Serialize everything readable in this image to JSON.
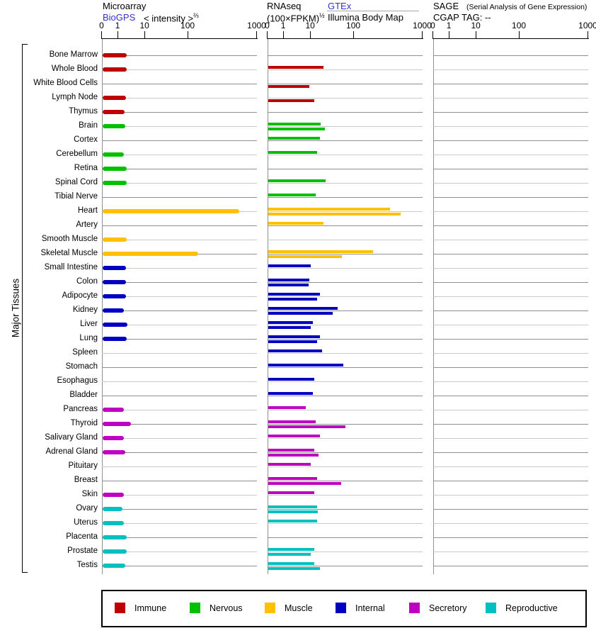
{
  "header": {
    "microarray": {
      "title": "Microarray",
      "link": "BioGPS",
      "intensity": "< intensity >",
      "exp": "⅔"
    },
    "rnaseq": {
      "title": "RNAseq",
      "unit": "(100×FPKM)",
      "exp": "½",
      "link": "GTEx",
      "link2": "Illumina Body Map"
    },
    "sage": {
      "title": "SAGE",
      "note": "(Serial Analysis of Gene Expression)",
      "tag": "CGAP TAG: --"
    }
  },
  "left_label": "Major Tissues",
  "axis_ticks": [
    {
      "label": "0",
      "v": 0
    },
    {
      "label": "1",
      "v": 1
    },
    {
      "label": "10",
      "v": 10
    },
    {
      "label": "100",
      "v": 100
    },
    {
      "label": "1000",
      "v": 1000
    }
  ],
  "colors": {
    "Immune": "#C00000",
    "Nervous": "#00C000",
    "Muscle": "#FFC000",
    "Internal": "#0000C0",
    "Secretory": "#C000C0",
    "Reproductive": "#00C0C0",
    "link": "#3333CC",
    "grid_dark": "#8F8F8F",
    "grid_light": "#C9C9C9"
  },
  "legend": [
    {
      "label": "Immune",
      "color": "#C00000"
    },
    {
      "label": "Nervous",
      "color": "#00C000"
    },
    {
      "label": "Muscle",
      "color": "#FFC000"
    },
    {
      "label": "Internal",
      "color": "#0000C0"
    },
    {
      "label": "Secretory",
      "color": "#C000C0"
    },
    {
      "label": "Reproductive",
      "color": "#00C0C0"
    }
  ],
  "chart_data": {
    "type": "bar",
    "orientation": "horizontal",
    "panels": [
      "Microarray (BioGPS, intensity^2/3)",
      "RNAseq GTEx ((100×FPKM)^1/2)",
      "RNAseq Illumina Body Map",
      "SAGE (no data, CGAP TAG: --)"
    ],
    "xlim": [
      0,
      1000
    ],
    "x_tick_labels": [
      "0",
      "1",
      "10",
      "100",
      "1000"
    ],
    "scale_note": "nonlinear axis: ticks 0,1,10,100,1000 at fractions 0,0.103,0.277,0.555,1.0 of axis width",
    "sage_values": "none",
    "tissues": [
      {
        "name": "Bone Marrow",
        "group": "Immune",
        "microarray": 2.0,
        "gtex": null,
        "illumina": null
      },
      {
        "name": "Whole Blood",
        "group": "Immune",
        "microarray": 2.1,
        "gtex": 20,
        "illumina": null
      },
      {
        "name": "White Blood Cells",
        "group": "Immune",
        "microarray": null,
        "gtex": null,
        "illumina": 9
      },
      {
        "name": "Lymph Node",
        "group": "Immune",
        "microarray": 1.9,
        "gtex": null,
        "illumina": 12
      },
      {
        "name": "Thymus",
        "group": "Immune",
        "microarray": 1.7,
        "gtex": null,
        "illumina": null
      },
      {
        "name": "Brain",
        "group": "Nervous",
        "microarray": 1.8,
        "gtex": 17,
        "illumina": 21
      },
      {
        "name": "Cortex",
        "group": "Nervous",
        "microarray": null,
        "gtex": 16,
        "illumina": null
      },
      {
        "name": "Cerebellum",
        "group": "Nervous",
        "microarray": 1.6,
        "gtex": 14,
        "illumina": null
      },
      {
        "name": "Retina",
        "group": "Nervous",
        "microarray": 2.1,
        "gtex": null,
        "illumina": null
      },
      {
        "name": "Spinal Cord",
        "group": "Nervous",
        "microarray": 2.0,
        "gtex": 22,
        "illumina": null
      },
      {
        "name": "Tibial Nerve",
        "group": "Nervous",
        "microarray": null,
        "gtex": 13,
        "illumina": null
      },
      {
        "name": "Heart",
        "group": "Muscle",
        "microarray": 550,
        "gtex": 330,
        "illumina": 470
      },
      {
        "name": "Artery",
        "group": "Muscle",
        "microarray": null,
        "gtex": 20,
        "illumina": null
      },
      {
        "name": "Smooth Muscle",
        "group": "Muscle",
        "microarray": 2.1,
        "gtex": null,
        "illumina": null
      },
      {
        "name": "Skeletal Muscle",
        "group": "Muscle",
        "microarray": 140,
        "gtex": 190,
        "illumina": 53
      },
      {
        "name": "Small Intestine",
        "group": "Internal",
        "microarray": 1.9,
        "gtex": 10,
        "illumina": null
      },
      {
        "name": "Colon",
        "group": "Internal",
        "microarray": 1.9,
        "gtex": 9,
        "illumina": 8.5
      },
      {
        "name": "Adipocyte",
        "group": "Internal",
        "microarray": 1.9,
        "gtex": 16,
        "illumina": 14
      },
      {
        "name": "Kidney",
        "group": "Internal",
        "microarray": 1.6,
        "gtex": 42,
        "illumina": 32
      },
      {
        "name": "Liver",
        "group": "Internal",
        "microarray": 2.2,
        "gtex": 11,
        "illumina": 10
      },
      {
        "name": "Lung",
        "group": "Internal",
        "microarray": 2.0,
        "gtex": 16,
        "illumina": 14
      },
      {
        "name": "Spleen",
        "group": "Internal",
        "microarray": null,
        "gtex": 18,
        "illumina": null
      },
      {
        "name": "Stomach",
        "group": "Internal",
        "microarray": null,
        "gtex": 56,
        "illumina": null
      },
      {
        "name": "Esophagus",
        "group": "Internal",
        "microarray": null,
        "gtex": 12,
        "illumina": null
      },
      {
        "name": "Bladder",
        "group": "Internal",
        "microarray": null,
        "gtex": 11,
        "illumina": null
      },
      {
        "name": "Pancreas",
        "group": "Secretory",
        "microarray": 1.6,
        "gtex": 6.5,
        "illumina": null
      },
      {
        "name": "Thyroid",
        "group": "Secretory",
        "microarray": 3.0,
        "gtex": 13,
        "illumina": 63
      },
      {
        "name": "Salivary Gland",
        "group": "Secretory",
        "microarray": 1.6,
        "gtex": 16,
        "illumina": null
      },
      {
        "name": "Adrenal Gland",
        "group": "Secretory",
        "microarray": 1.8,
        "gtex": 12,
        "illumina": 15
      },
      {
        "name": "Pituitary",
        "group": "Secretory",
        "microarray": null,
        "gtex": 10,
        "illumina": null
      },
      {
        "name": "Breast",
        "group": "Secretory",
        "microarray": null,
        "gtex": 14,
        "illumina": 51
      },
      {
        "name": "Skin",
        "group": "Secretory",
        "microarray": 1.6,
        "gtex": 12,
        "illumina": null
      },
      {
        "name": "Ovary",
        "group": "Reproductive",
        "microarray": 1.4,
        "gtex": 14,
        "illumina": 14.5
      },
      {
        "name": "Uterus",
        "group": "Reproductive",
        "microarray": 1.6,
        "gtex": 14,
        "illumina": null
      },
      {
        "name": "Placenta",
        "group": "Reproductive",
        "microarray": 2.1,
        "gtex": null,
        "illumina": null
      },
      {
        "name": "Prostate",
        "group": "Reproductive",
        "microarray": 2.1,
        "gtex": 12,
        "illumina": 10
      },
      {
        "name": "Testis",
        "group": "Reproductive",
        "microarray": 1.8,
        "gtex": 12,
        "illumina": 16
      }
    ]
  }
}
